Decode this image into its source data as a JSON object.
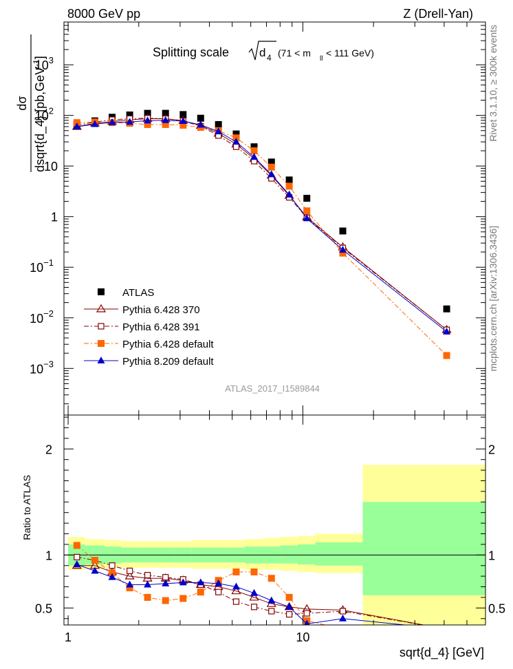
{
  "header": {
    "left": "8000 GeV pp",
    "right": "Z (Drell-Yan)"
  },
  "side_labels": {
    "rivet": "Rivet 3.1.10, ≥ 300k events",
    "mcplots": "mcplots.cern.ch [arXiv:1306.3436]"
  },
  "chart_data": [
    {
      "type": "scatter",
      "panel": "main",
      "title": "Splitting scale √d₄ (71 < mₗₗ < 111 GeV)",
      "title_main": "Splitting scale",
      "title_sqrt": "d",
      "title_sqrt_sub": "4",
      "title_range": "(71 < m",
      "title_range_sub": "ll",
      "title_range_end": " < 111 GeV)",
      "ylabel": "dσ / dsqrt{d_4} [pb,GeV⁻¹]",
      "ylabel_num": "dσ",
      "ylabel_den": "dsqrt{d_4} [pb,GeV",
      "ylabel_exp": "-1",
      "ylabel_end": "]",
      "xscale": "log",
      "yscale": "log",
      "xlim": [
        0.96,
        60
      ],
      "ylim": [
        0.00012,
        7000
      ],
      "ytick_labels": [
        {
          "value": 0.001,
          "base": "10",
          "exp": "−3"
        },
        {
          "value": 0.01,
          "base": "10",
          "exp": "−2"
        },
        {
          "value": 0.1,
          "base": "10",
          "exp": "−1"
        },
        {
          "value": 1,
          "base": "1",
          "exp": ""
        },
        {
          "value": 10,
          "base": "10",
          "exp": ""
        },
        {
          "value": 100,
          "base": "10",
          "exp": "2"
        },
        {
          "value": 1000,
          "base": "10",
          "exp": "3"
        }
      ],
      "watermark": "ATLAS_2017_I1589844",
      "legend_position": "bottom-left",
      "series": [
        {
          "name": "ATLAS",
          "color": "#000000",
          "marker": "square-filled",
          "line": "none",
          "x": [
            1.09,
            1.3,
            1.54,
            1.83,
            2.18,
            2.6,
            3.09,
            3.67,
            4.37,
            5.2,
            6.2,
            7.35,
            8.75,
            10.4,
            14.8,
            41
          ],
          "y": [
            66,
            78,
            92,
            102,
            110,
            110,
            104,
            88,
            66,
            43,
            24,
            12,
            5.3,
            2.3,
            0.52,
            0.015
          ]
        },
        {
          "name": "Pythia 6.428 370",
          "color": "#800000",
          "marker": "triangle-open",
          "line": "solid",
          "x": [
            1.09,
            1.3,
            1.54,
            1.83,
            2.18,
            2.6,
            3.09,
            3.67,
            4.37,
            5.2,
            6.2,
            7.35,
            8.75,
            10.4,
            14.8,
            41
          ],
          "y": [
            60,
            70,
            76,
            82,
            86,
            86,
            79,
            63,
            44,
            27,
            14,
            6.5,
            2.6,
            0.98,
            0.25,
            0.0058
          ]
        },
        {
          "name": "Pythia 6.428 391",
          "color": "#800000",
          "marker": "square-open",
          "line": "dashdot",
          "x": [
            1.09,
            1.3,
            1.54,
            1.83,
            2.18,
            2.6,
            3.09,
            3.67,
            4.37,
            5.2,
            6.2,
            7.35,
            8.75,
            10.4,
            14.8,
            41
          ],
          "y": [
            64,
            74,
            82,
            86,
            88,
            86,
            78,
            61,
            40,
            24,
            12.5,
            5.7,
            2.4,
            0.95,
            0.24,
            0.0058
          ]
        },
        {
          "name": "Pythia 6.428 default",
          "color": "#ff6600",
          "marker": "square-filled",
          "line": "dashdot",
          "x": [
            1.09,
            1.3,
            1.54,
            1.83,
            2.18,
            2.6,
            3.09,
            3.67,
            4.37,
            5.2,
            6.2,
            7.35,
            8.75,
            10.4,
            14.8,
            41
          ],
          "y": [
            72,
            74,
            72,
            70,
            66,
            66,
            64,
            58,
            50,
            36,
            20,
            9.5,
            4.0,
            1.3,
            0.19,
            0.0018
          ]
        },
        {
          "name": "Pythia 8.209 default",
          "color": "#0000cc",
          "marker": "triangle-filled",
          "line": "solid",
          "x": [
            1.09,
            1.3,
            1.54,
            1.83,
            2.18,
            2.6,
            3.09,
            3.67,
            4.37,
            5.2,
            6.2,
            7.35,
            8.75,
            10.4,
            14.8,
            41
          ],
          "y": [
            60,
            67,
            73,
            74,
            79,
            80,
            77,
            65,
            48,
            30,
            15,
            6.8,
            2.7,
            0.92,
            0.22,
            0.0053
          ]
        }
      ]
    },
    {
      "type": "line",
      "panel": "ratio",
      "ylabel": "Ratio to ATLAS",
      "xlabel": "sqrt{d_4} [GeV]",
      "xscale": "log",
      "xlim": [
        0.96,
        60
      ],
      "ylim": [
        0.34,
        2.32
      ],
      "ytick_labels": [
        "0.5",
        "1",
        "2"
      ],
      "ytick_values": [
        0.5,
        1,
        2
      ],
      "xtick_labels": [
        "1",
        "10"
      ],
      "xtick_values": [
        1,
        10
      ],
      "reference_line": 1,
      "bands": {
        "bin_edges": [
          1,
          1.18,
          1.42,
          1.68,
          2.0,
          2.38,
          2.83,
          3.36,
          4.0,
          4.76,
          5.66,
          6.73,
          8.0,
          9.51,
          11.3,
          18,
          60
        ],
        "inner": [
          [
            0.9,
            1.1
          ],
          [
            0.91,
            1.09
          ],
          [
            0.92,
            1.08
          ],
          [
            0.93,
            1.07
          ],
          [
            0.93,
            1.07
          ],
          [
            0.93,
            1.07
          ],
          [
            0.93,
            1.07
          ],
          [
            0.93,
            1.07
          ],
          [
            0.93,
            1.07
          ],
          [
            0.93,
            1.07
          ],
          [
            0.92,
            1.08
          ],
          [
            0.92,
            1.08
          ],
          [
            0.92,
            1.09
          ],
          [
            0.91,
            1.1
          ],
          [
            0.9,
            1.12
          ],
          [
            0.62,
            1.5
          ]
        ],
        "outer": [
          [
            0.86,
            1.17
          ],
          [
            0.87,
            1.15
          ],
          [
            0.88,
            1.14
          ],
          [
            0.88,
            1.13
          ],
          [
            0.88,
            1.13
          ],
          [
            0.88,
            1.13
          ],
          [
            0.88,
            1.13
          ],
          [
            0.87,
            1.14
          ],
          [
            0.87,
            1.14
          ],
          [
            0.87,
            1.14
          ],
          [
            0.86,
            1.15
          ],
          [
            0.86,
            1.16
          ],
          [
            0.85,
            1.17
          ],
          [
            0.84,
            1.18
          ],
          [
            0.83,
            1.2
          ],
          [
            0.3,
            1.85
          ]
        ]
      },
      "series": [
        {
          "name": "Pythia 6.428 370",
          "color": "#800000",
          "marker": "triangle-open",
          "line": "solid",
          "x": [
            1.09,
            1.3,
            1.54,
            1.83,
            2.18,
            2.6,
            3.09,
            3.67,
            4.37,
            5.2,
            6.2,
            7.35,
            8.75,
            10.4,
            14.8,
            41
          ],
          "y": [
            0.9,
            0.9,
            0.84,
            0.8,
            0.78,
            0.78,
            0.76,
            0.72,
            0.7,
            0.66,
            0.6,
            0.54,
            0.51,
            0.49,
            0.48,
            0.3
          ]
        },
        {
          "name": "Pythia 6.428 391",
          "color": "#800000",
          "marker": "square-open",
          "line": "dashdot",
          "x": [
            1.09,
            1.3,
            1.54,
            1.83,
            2.18,
            2.6,
            3.09,
            3.67,
            4.37,
            5.2,
            6.2,
            7.35,
            8.75,
            10.4,
            14.8,
            41
          ],
          "y": [
            0.98,
            0.95,
            0.9,
            0.85,
            0.81,
            0.79,
            0.77,
            0.72,
            0.65,
            0.56,
            0.51,
            0.47,
            0.44,
            0.45,
            0.47,
            0.3
          ]
        },
        {
          "name": "Pythia 6.428 default",
          "color": "#ff6600",
          "marker": "square-filled",
          "line": "dashdot",
          "x": [
            1.09,
            1.3,
            1.54,
            1.83,
            2.18,
            2.6,
            3.09,
            3.67,
            4.37,
            5.2,
            6.2,
            7.35,
            8.75,
            10.4,
            14.8,
            41
          ],
          "y": [
            1.09,
            0.95,
            0.83,
            0.69,
            0.6,
            0.57,
            0.59,
            0.65,
            0.76,
            0.84,
            0.84,
            0.78,
            0.6,
            0.38,
            0.3,
            0.3
          ]
        },
        {
          "name": "Pythia 8.209 default",
          "color": "#0000cc",
          "marker": "triangle-filled",
          "line": "solid",
          "x": [
            1.09,
            1.3,
            1.54,
            1.83,
            2.18,
            2.6,
            3.09,
            3.67,
            4.37,
            5.2,
            6.2,
            7.35,
            8.75,
            10.4,
            14.8,
            41
          ],
          "y": [
            0.91,
            0.85,
            0.79,
            0.72,
            0.72,
            0.73,
            0.74,
            0.74,
            0.73,
            0.7,
            0.64,
            0.57,
            0.51,
            0.35,
            0.4,
            0.3
          ]
        }
      ]
    }
  ]
}
